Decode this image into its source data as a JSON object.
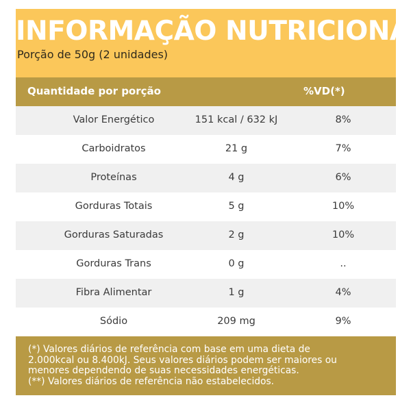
{
  "header": {
    "title": "INFORMAÇÃO NUTRICIONAL",
    "portion": "Porção de 50g (2 unidades)"
  },
  "table": {
    "col_header_1": "Quantidade por porção",
    "col_header_2": "%VD(*)",
    "rows": [
      {
        "name": "Valor Energético",
        "amount": "151 kcal / 632 kJ",
        "dv": "8%"
      },
      {
        "name": "Carboidratos",
        "amount": "21 g",
        "dv": "7%"
      },
      {
        "name": "Proteínas",
        "amount": "4 g",
        "dv": "6%"
      },
      {
        "name": "Gorduras Totais",
        "amount": "5 g",
        "dv": "10%"
      },
      {
        "name": "Gorduras Saturadas",
        "amount": "2 g",
        "dv": "10%"
      },
      {
        "name": "Gorduras Trans",
        "amount": "0 g",
        "dv": ".."
      },
      {
        "name": "Fibra Alimentar",
        "amount": "1 g",
        "dv": "4%"
      },
      {
        "name": "Sódio",
        "amount": "209 mg",
        "dv": "9%"
      }
    ]
  },
  "footer": {
    "lines": [
      "(*) Valores diários de referência com base em uma dieta de",
      "2.000kcal ou 8.400kJ. Seus valores diários podem ser maiores ou",
      "menores dependendo de suas necessidades energéticas.",
      "(**) Valores diários de referência não estabelecidos."
    ]
  },
  "colors": {
    "header_bg": "#fbc75a",
    "band_bg": "#b89a45",
    "row_alt_bg": "#f0f0f0"
  }
}
